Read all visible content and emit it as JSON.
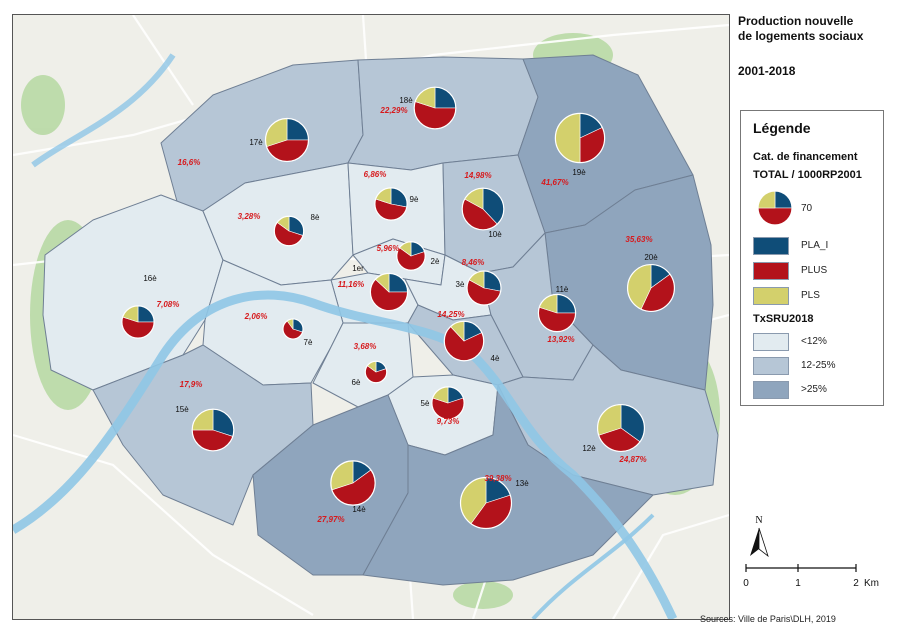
{
  "title": {
    "lines": [
      "Production nouvelle",
      "de logements sociaux"
    ],
    "period": "2001-2018"
  },
  "legend": {
    "title": "Légende",
    "category_title": "Cat. de financement",
    "total_title": "TOTAL / 1000RP2001",
    "pie_example_value": "70",
    "categories": [
      {
        "label": "PLA_I",
        "color": "#0f4d78"
      },
      {
        "label": "PLUS",
        "color": "#b3121b"
      },
      {
        "label": "PLS",
        "color": "#d3d06c"
      }
    ],
    "txsru_title": "TxSRU2018",
    "classes": [
      {
        "label": "<12%",
        "color": "#e2ebf0"
      },
      {
        "label": "12-25%",
        "color": "#b6c6d6"
      },
      {
        "label": ">25%",
        "color": "#8fa5bd"
      }
    ]
  },
  "arrondissements": [
    {
      "label": "1er",
      "pct": "11,16%",
      "class": 0,
      "total": 24,
      "shares": [
        0.25,
        0.62,
        0.13
      ]
    },
    {
      "label": "2è",
      "pct": "5,96%",
      "class": 0,
      "total": 14,
      "shares": [
        0.2,
        0.65,
        0.15
      ]
    },
    {
      "label": "3è",
      "pct": "8,46%",
      "class": 0,
      "total": 20,
      "shares": [
        0.28,
        0.55,
        0.17
      ]
    },
    {
      "label": "4è",
      "pct": "14,25%",
      "class": 1,
      "total": 27,
      "shares": [
        0.18,
        0.7,
        0.12
      ]
    },
    {
      "label": "5è",
      "pct": "9,73%",
      "class": 0,
      "total": 18,
      "shares": [
        0.2,
        0.6,
        0.2
      ]
    },
    {
      "label": "6è",
      "pct": "3,68%",
      "class": 0,
      "total": 8,
      "shares": [
        0.2,
        0.65,
        0.15
      ]
    },
    {
      "label": "7è",
      "pct": "2,06%",
      "class": 0,
      "total": 7,
      "shares": [
        0.3,
        0.6,
        0.1
      ]
    },
    {
      "label": "8è",
      "pct": "3,28%",
      "class": 0,
      "total": 15,
      "shares": [
        0.3,
        0.55,
        0.15
      ]
    },
    {
      "label": "9è",
      "pct": "6,86%",
      "class": 0,
      "total": 18,
      "shares": [
        0.28,
        0.52,
        0.2
      ]
    },
    {
      "label": "10è",
      "pct": "14,98%",
      "class": 1,
      "total": 30,
      "shares": [
        0.38,
        0.45,
        0.17
      ]
    },
    {
      "label": "11è",
      "pct": "13,92%",
      "class": 1,
      "total": 24,
      "shares": [
        0.25,
        0.55,
        0.2
      ]
    },
    {
      "label": "12è",
      "pct": "24,87%",
      "class": 1,
      "total": 38,
      "shares": [
        0.35,
        0.35,
        0.3
      ]
    },
    {
      "label": "13è",
      "pct": "39,38%",
      "class": 2,
      "total": 45,
      "shares": [
        0.2,
        0.4,
        0.4
      ]
    },
    {
      "label": "14è",
      "pct": "27,97%",
      "class": 2,
      "total": 34,
      "shares": [
        0.15,
        0.55,
        0.3
      ]
    },
    {
      "label": "15è",
      "pct": "17,9%",
      "class": 1,
      "total": 30,
      "shares": [
        0.3,
        0.45,
        0.25
      ]
    },
    {
      "label": "16è",
      "pct": "7,08%",
      "class": 0,
      "total": 18,
      "shares": [
        0.25,
        0.55,
        0.2
      ]
    },
    {
      "label": "17è",
      "pct": "16,6%",
      "class": 1,
      "total": 32,
      "shares": [
        0.25,
        0.45,
        0.3
      ]
    },
    {
      "label": "18è",
      "pct": "22,29%",
      "class": 1,
      "total": 30,
      "shares": [
        0.25,
        0.55,
        0.2
      ]
    },
    {
      "label": "19è",
      "pct": "41,67%",
      "class": 2,
      "total": 42,
      "shares": [
        0.18,
        0.32,
        0.5
      ]
    },
    {
      "label": "20è",
      "pct": "35,63%",
      "class": 2,
      "total": 38,
      "shares": [
        0.15,
        0.42,
        0.43
      ]
    }
  ],
  "scale": {
    "ticks": [
      "0",
      "1",
      "2"
    ],
    "unit": "Km"
  },
  "north": {
    "label": "N"
  },
  "source": "Sources: Ville de Paris\\DLH, 2019"
}
